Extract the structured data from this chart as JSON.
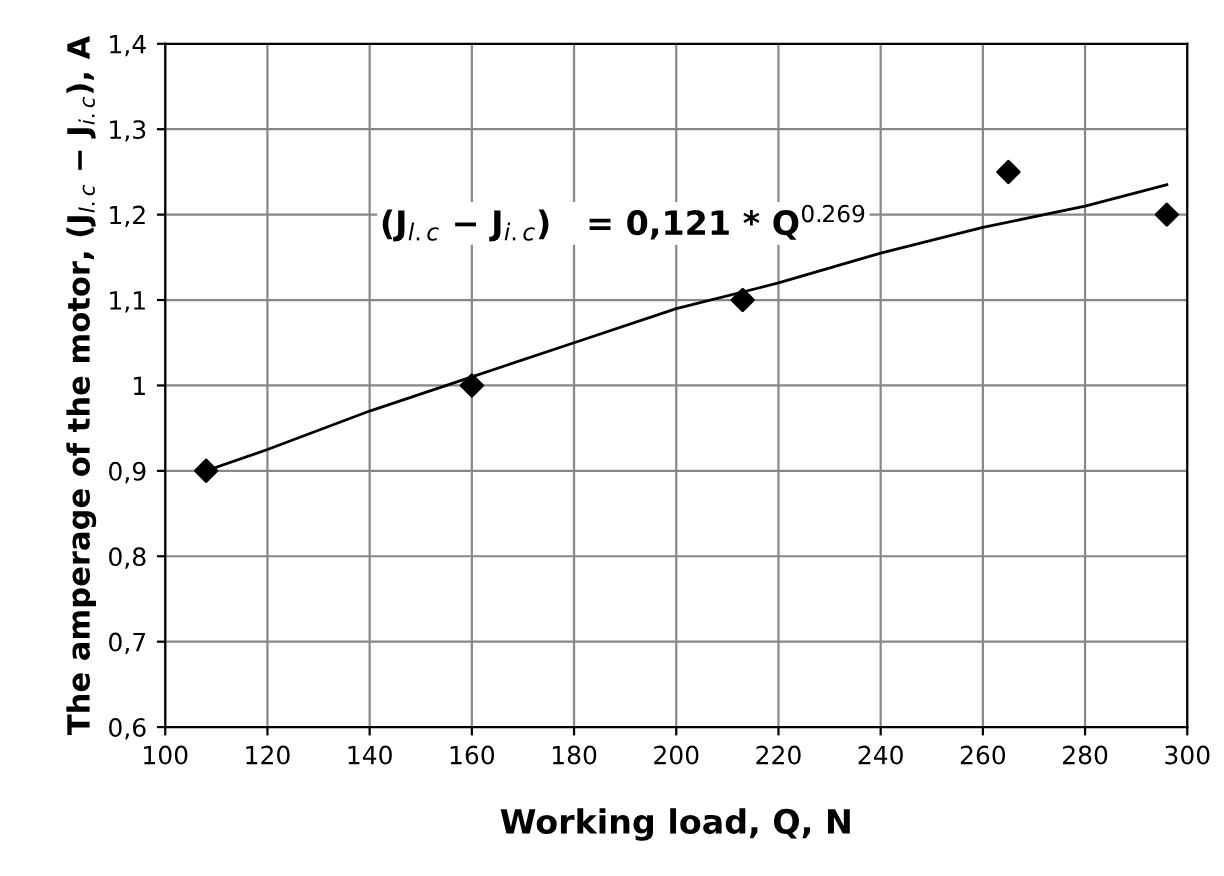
{
  "chart_data": {
    "type": "scatter",
    "xlabel": "Working load, Q, N",
    "ylabel": "The amperage of the motor, (J$_{l.c}$ − J$_{i.c}$), A",
    "annotations": [
      "(J$_{l.c}$ − J$_{i.c}$)   = 0,121 * Q$^{0.269}$"
    ],
    "series": [
      {
        "color": "#000000",
        "marker": "diamond",
        "x": [
          108,
          160,
          213,
          265,
          296
        ],
        "values": [
          0.9,
          1.0,
          1.1,
          1.25,
          1.2
        ]
      },
      {
        "type": "line",
        "color": "#000000",
        "marker": "none",
        "line_style": "solid",
        "x": [
          108,
          120,
          140,
          160,
          180,
          200,
          220,
          240,
          260,
          280,
          296
        ],
        "values": [
          0.9,
          0.925,
          0.97,
          1.01,
          1.05,
          1.09,
          1.12,
          1.155,
          1.185,
          1.21,
          1.235
        ]
      }
    ],
    "xlim": [
      100,
      300
    ],
    "xticks": [
      100,
      120,
      140,
      160,
      180,
      200,
      220,
      240,
      260,
      280,
      300
    ],
    "ylim": [
      0.6,
      1.4
    ],
    "yticks": [
      {
        "value": 0.6,
        "label": "0,6"
      },
      {
        "value": 0.7,
        "label": "0,7"
      },
      {
        "value": 0.8,
        "label": "0,8"
      },
      {
        "value": 0.9,
        "label": "0,9"
      },
      {
        "value": 1,
        "label": "1"
      },
      {
        "value": 1.1,
        "label": "1,1"
      },
      {
        "value": 1.2,
        "label": "1,2"
      },
      {
        "value": 1.3,
        "label": "1,3"
      },
      {
        "value": 1.4,
        "label": "1,4"
      }
    ],
    "grid": true
  }
}
